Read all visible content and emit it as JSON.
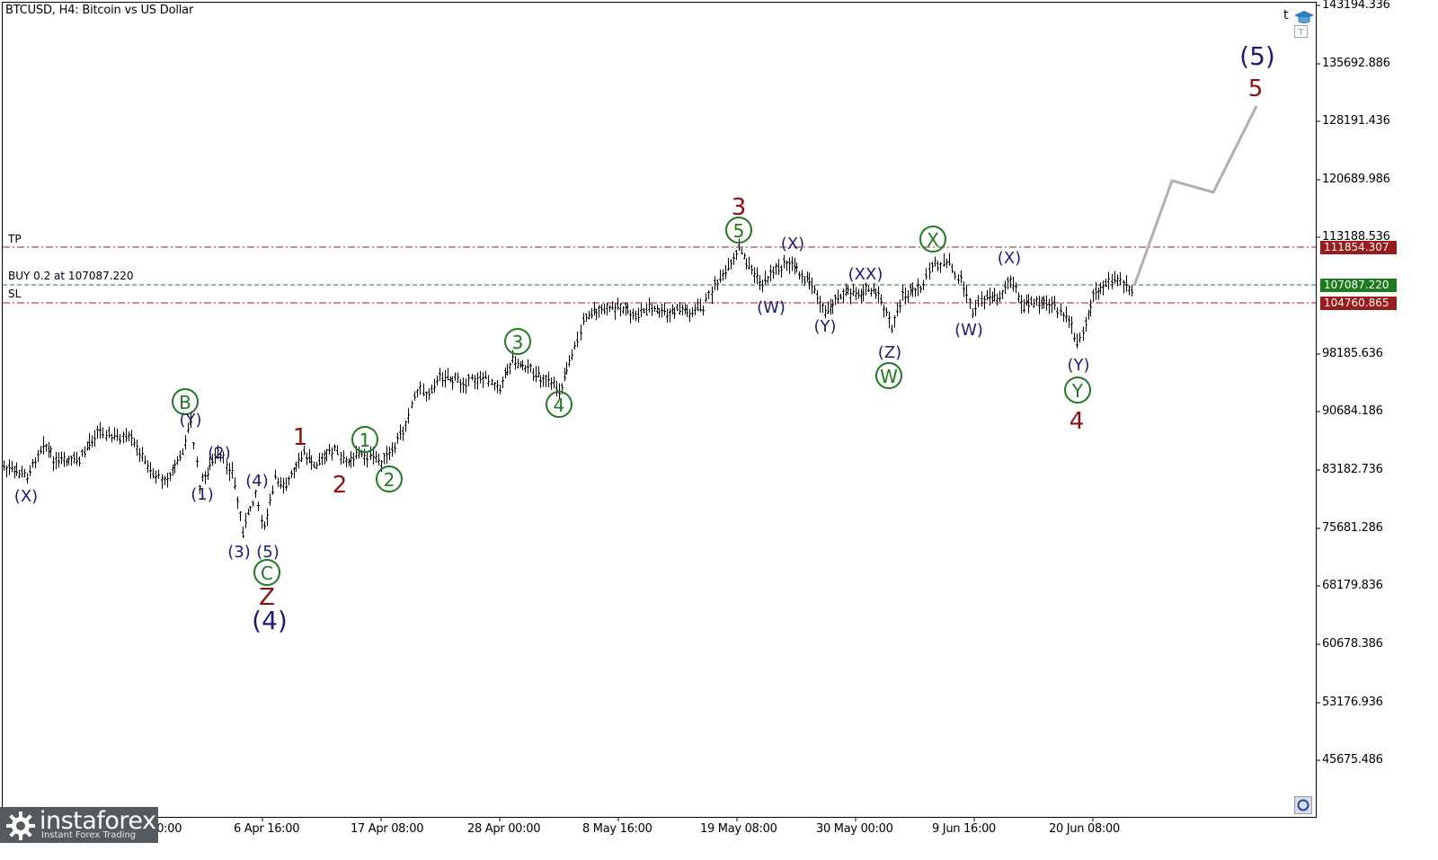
{
  "window": {
    "title": "BTCUSD, H4:  Bitcoin vs US Dollar"
  },
  "levels": {
    "tp": {
      "label": "TP",
      "price_label": "111854.307",
      "price": 111854.307,
      "color": "#9a1b1b"
    },
    "entry": {
      "label": "BUY 0.2 at 107087.220",
      "price_label": "107087.220",
      "price": 107087.22,
      "color": "#1d7a1d"
    },
    "sl": {
      "label": "SL",
      "price_label": "104760.865",
      "price": 104760.865,
      "color": "#9a1b1b"
    }
  },
  "y_axis": {
    "ticks": [
      "143194.336",
      "135692.886",
      "128191.436",
      "120689.986",
      "113188.536",
      "98185.636",
      "90684.186",
      "83182.736",
      "75681.286",
      "68179.836",
      "60678.386",
      "53176.936",
      "45675.486"
    ]
  },
  "x_axis": {
    "ticks": [
      "26 Mar 00:00",
      "6 Apr 16:00",
      "17 Apr 08:00",
      "28 Apr 00:00",
      "8 May 16:00",
      "19 May 08:00",
      "30 May 00:00",
      "9 Jun 16:00",
      "20 Jun 08:00"
    ]
  },
  "wave_labels": {
    "x1": "(X)",
    "b_circ": "B",
    "y1": "(Y)",
    "w2": "(2)",
    "w1": "(1)",
    "w4": "(4)",
    "w3": "(3)",
    "w5": "(5)",
    "c_circ": "C",
    "z_red": "Z",
    "w4_big": "(4)",
    "r1": "1",
    "r2": "2",
    "g1": "1",
    "g2": "2",
    "g3": "3",
    "g4": "4",
    "g5": "5",
    "r3": "3",
    "x2": "(X)",
    "w_a": "(W)",
    "y2": "(Y)",
    "xx": "(XX)",
    "z2": "(Z)",
    "w_circ": "W",
    "x_circ": "X",
    "x3": "(X)",
    "w_b": "(W)",
    "y3": "(Y)",
    "y_circ": "Y",
    "r4": "4",
    "w5_big": "(5)",
    "r5": "5"
  },
  "colors": {
    "navy": "#1b1b7a",
    "green": "#1d7a1d",
    "darkred": "#8b1010",
    "projection": "#b0b0b0"
  },
  "branding": {
    "logo": "instaforex",
    "tagline": "Instant Forex Trading"
  },
  "icons": {
    "corner_letter": "t",
    "top_right": "graduation-cap-icon",
    "bottom_right": "circle-button-icon"
  }
}
